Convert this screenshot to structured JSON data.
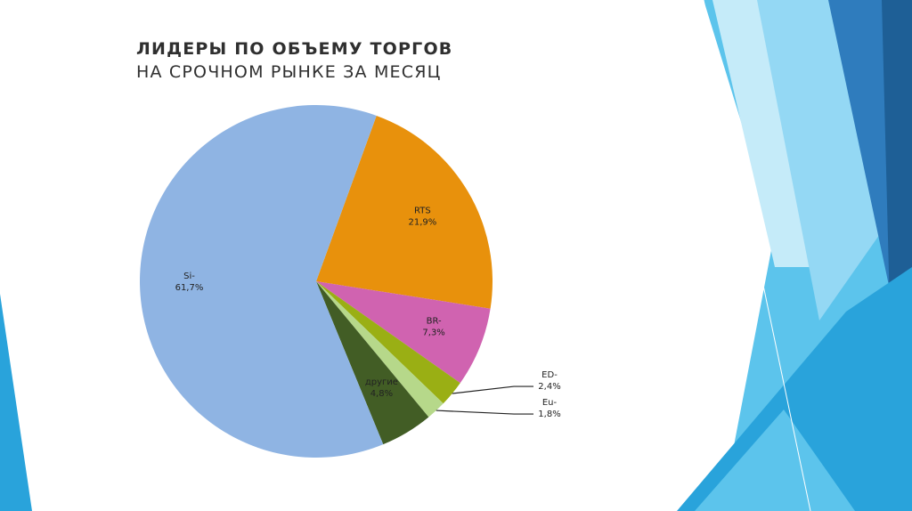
{
  "title": {
    "line1": "ЛИДЕРЫ ПО ОБЪЕМУ ТОРГОВ",
    "line2": "НА СРОЧНОМ РЫНКЕ ЗА МЕСЯЦ"
  },
  "chart_data": {
    "type": "pie",
    "title": "ЛИДЕРЫ ПО ОБЪЕМУ ТОРГОВ НА СРОЧНОМ РЫНКЕ ЗА МЕСЯЦ",
    "start_angle_deg": 20,
    "slices": [
      {
        "name": "RTS",
        "label": "21,9%",
        "value": 21.9,
        "color": "#e8910c",
        "label_mode": "inside"
      },
      {
        "name": "BR-",
        "label": "7,3%",
        "value": 7.3,
        "color": "#d063b0",
        "label_mode": "inside"
      },
      {
        "name": "ED-",
        "label": "2,4%",
        "value": 2.4,
        "color": "#9aaf14",
        "label_mode": "outside"
      },
      {
        "name": "Eu-",
        "label": "1,8%",
        "value": 1.8,
        "color": "#b6d88a",
        "label_mode": "outside"
      },
      {
        "name": "другие",
        "label": "4,8%",
        "value": 4.8,
        "color": "#425d25",
        "label_mode": "inside-light"
      },
      {
        "name": "Si-",
        "label": "61,7%",
        "value": 61.7,
        "color": "#8fb4e3",
        "label_mode": "inside"
      }
    ]
  },
  "theme": {
    "deco_colors": [
      "#29a3db",
      "#5cc4ec",
      "#94d8f4",
      "#2f7cbd",
      "#1e5f96",
      "#c5ebf9"
    ]
  }
}
